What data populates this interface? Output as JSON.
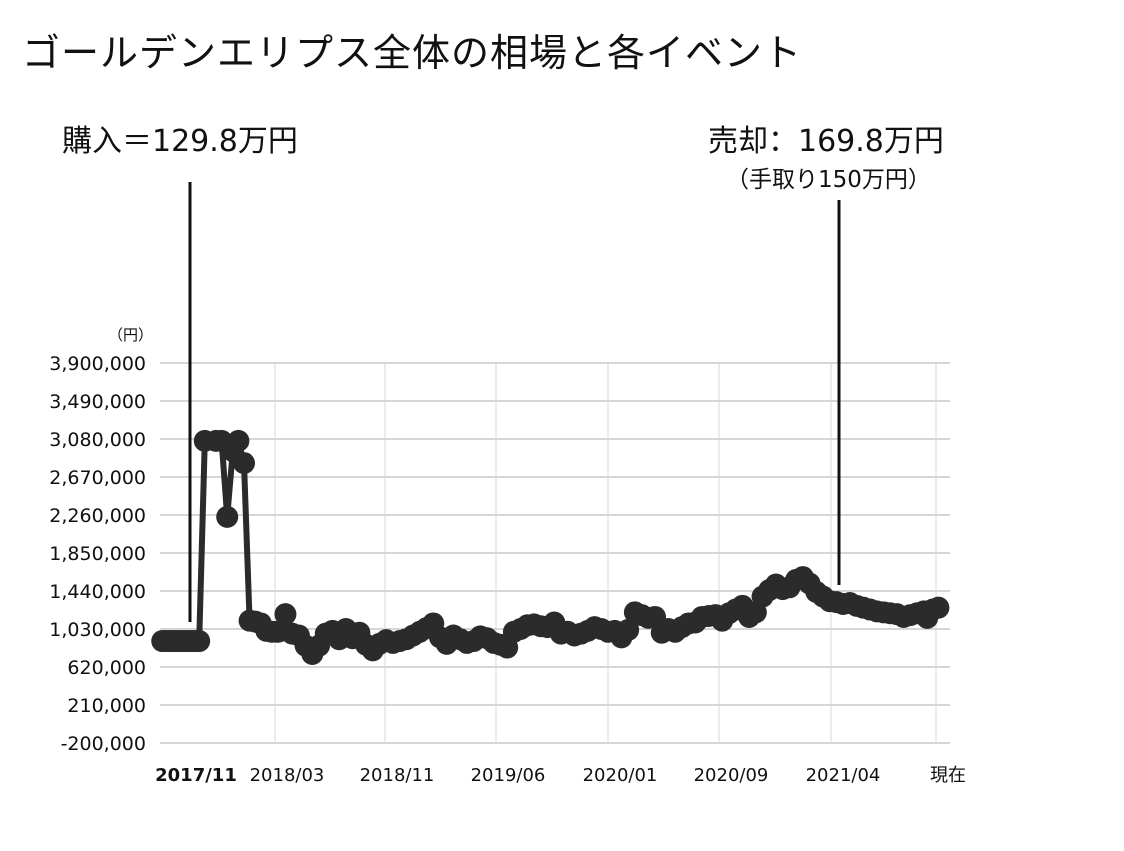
{
  "title": "ゴールデンエリプス全体の相場と各イベント",
  "unit_label": "（円）",
  "annotations": {
    "buy": "購入＝129.8万円",
    "sell": "売却：169.8万円",
    "sell_sub": "（手取り150万円）"
  },
  "chart_data": {
    "type": "scatter",
    "title": "ゴールデンエリプス全体の相場と各イベント",
    "ylabel": "（円）",
    "ylim": [
      -200000,
      3900000
    ],
    "yticks": [
      -200000,
      210000,
      620000,
      1030000,
      1440000,
      1850000,
      2260000,
      2670000,
      3080000,
      3490000,
      3900000
    ],
    "ytick_labels": [
      "-200,000",
      "210,000",
      "620,000",
      "1,030,000",
      "1,440,000",
      "1,850,000",
      "2,260,000",
      "2,670,000",
      "3,080,000",
      "3,490,000",
      "3,900,000"
    ],
    "xtick_labels": [
      "2017/11",
      "2018/03",
      "2018/11",
      "2019/06",
      "2020/01",
      "2020/09",
      "2021/04",
      "現在"
    ],
    "grid": true,
    "events": [
      {
        "label": "購入＝129.8万円",
        "at": "2017/11"
      },
      {
        "label": "売却：169.8万円",
        "at": "2021/04"
      }
    ],
    "series": [
      {
        "x": [
          0.02,
          0.05,
          0.08,
          0.11,
          0.14,
          0.17,
          0.2,
          0.23,
          0.26,
          0.29,
          0.32,
          0.35,
          0.4,
          0.5,
          0.55,
          0.6,
          0.65,
          0.7,
          0.75,
          0.8,
          0.85,
          0.9,
          0.95,
          1.0,
          1.05,
          1.08,
          1.12,
          1.18,
          1.24,
          1.3,
          1.36,
          1.42,
          1.48,
          1.54,
          1.6,
          1.66,
          1.72,
          1.78,
          1.84,
          1.9,
          1.96,
          2.02,
          2.08,
          2.14,
          2.2,
          2.26,
          2.32,
          2.38,
          2.44,
          2.5,
          2.56,
          2.62,
          2.68,
          2.74,
          2.8,
          2.86,
          2.92,
          2.98,
          3.04,
          3.1,
          3.16,
          3.22,
          3.28,
          3.34,
          3.4,
          3.46,
          3.52,
          3.58,
          3.64,
          3.7,
          3.76,
          3.82,
          3.88,
          3.94,
          4.0,
          4.06,
          4.12,
          4.18,
          4.24,
          4.3,
          4.36,
          4.42,
          4.48,
          4.54,
          4.6,
          4.66,
          4.72,
          4.78,
          4.84,
          4.9,
          4.96,
          5.02,
          5.08,
          5.14,
          5.2,
          5.26,
          5.32,
          5.38,
          5.44,
          5.5,
          5.56,
          5.62,
          5.68,
          5.74,
          5.8,
          5.86,
          5.92,
          5.98,
          6.04,
          6.1,
          6.16,
          6.22,
          6.28,
          6.34,
          6.4,
          6.46,
          6.52,
          6.58,
          6.64,
          6.7,
          6.76,
          6.82,
          6.85,
          6.9,
          6.95
        ],
        "y": [
          900000,
          900000,
          900000,
          900000,
          900000,
          900000,
          900000,
          900000,
          900000,
          900000,
          900000,
          900000,
          3060000,
          3060000,
          3060000,
          2240000,
          2950000,
          3060000,
          2820000,
          1120000,
          1110000,
          1090000,
          1010000,
          1000000,
          1000000,
          1010000,
          1190000,
          980000,
          960000,
          850000,
          760000,
          850000,
          980000,
          1010000,
          920000,
          1030000,
          930000,
          990000,
          860000,
          800000,
          870000,
          910000,
          880000,
          900000,
          920000,
          960000,
          1000000,
          1040000,
          1090000,
          940000,
          870000,
          960000,
          920000,
          880000,
          900000,
          950000,
          930000,
          880000,
          860000,
          830000,
          1000000,
          1030000,
          1070000,
          1080000,
          1060000,
          1050000,
          1100000,
          980000,
          1000000,
          960000,
          980000,
          1010000,
          1050000,
          1030000,
          1000000,
          1010000,
          940000,
          1020000,
          1210000,
          1180000,
          1150000,
          1160000,
          990000,
          1030000,
          1000000,
          1050000,
          1090000,
          1100000,
          1160000,
          1170000,
          1180000,
          1120000,
          1200000,
          1240000,
          1280000,
          1160000,
          1210000,
          1380000,
          1450000,
          1510000,
          1460000,
          1480000,
          1560000,
          1590000,
          1520000,
          1430000,
          1380000,
          1330000,
          1320000,
          1300000,
          1310000,
          1280000,
          1260000,
          1240000,
          1220000,
          1210000,
          1200000,
          1190000,
          1160000,
          1180000,
          1200000,
          1220000,
          1150000,
          1240000,
          1260000
        ]
      }
    ]
  }
}
